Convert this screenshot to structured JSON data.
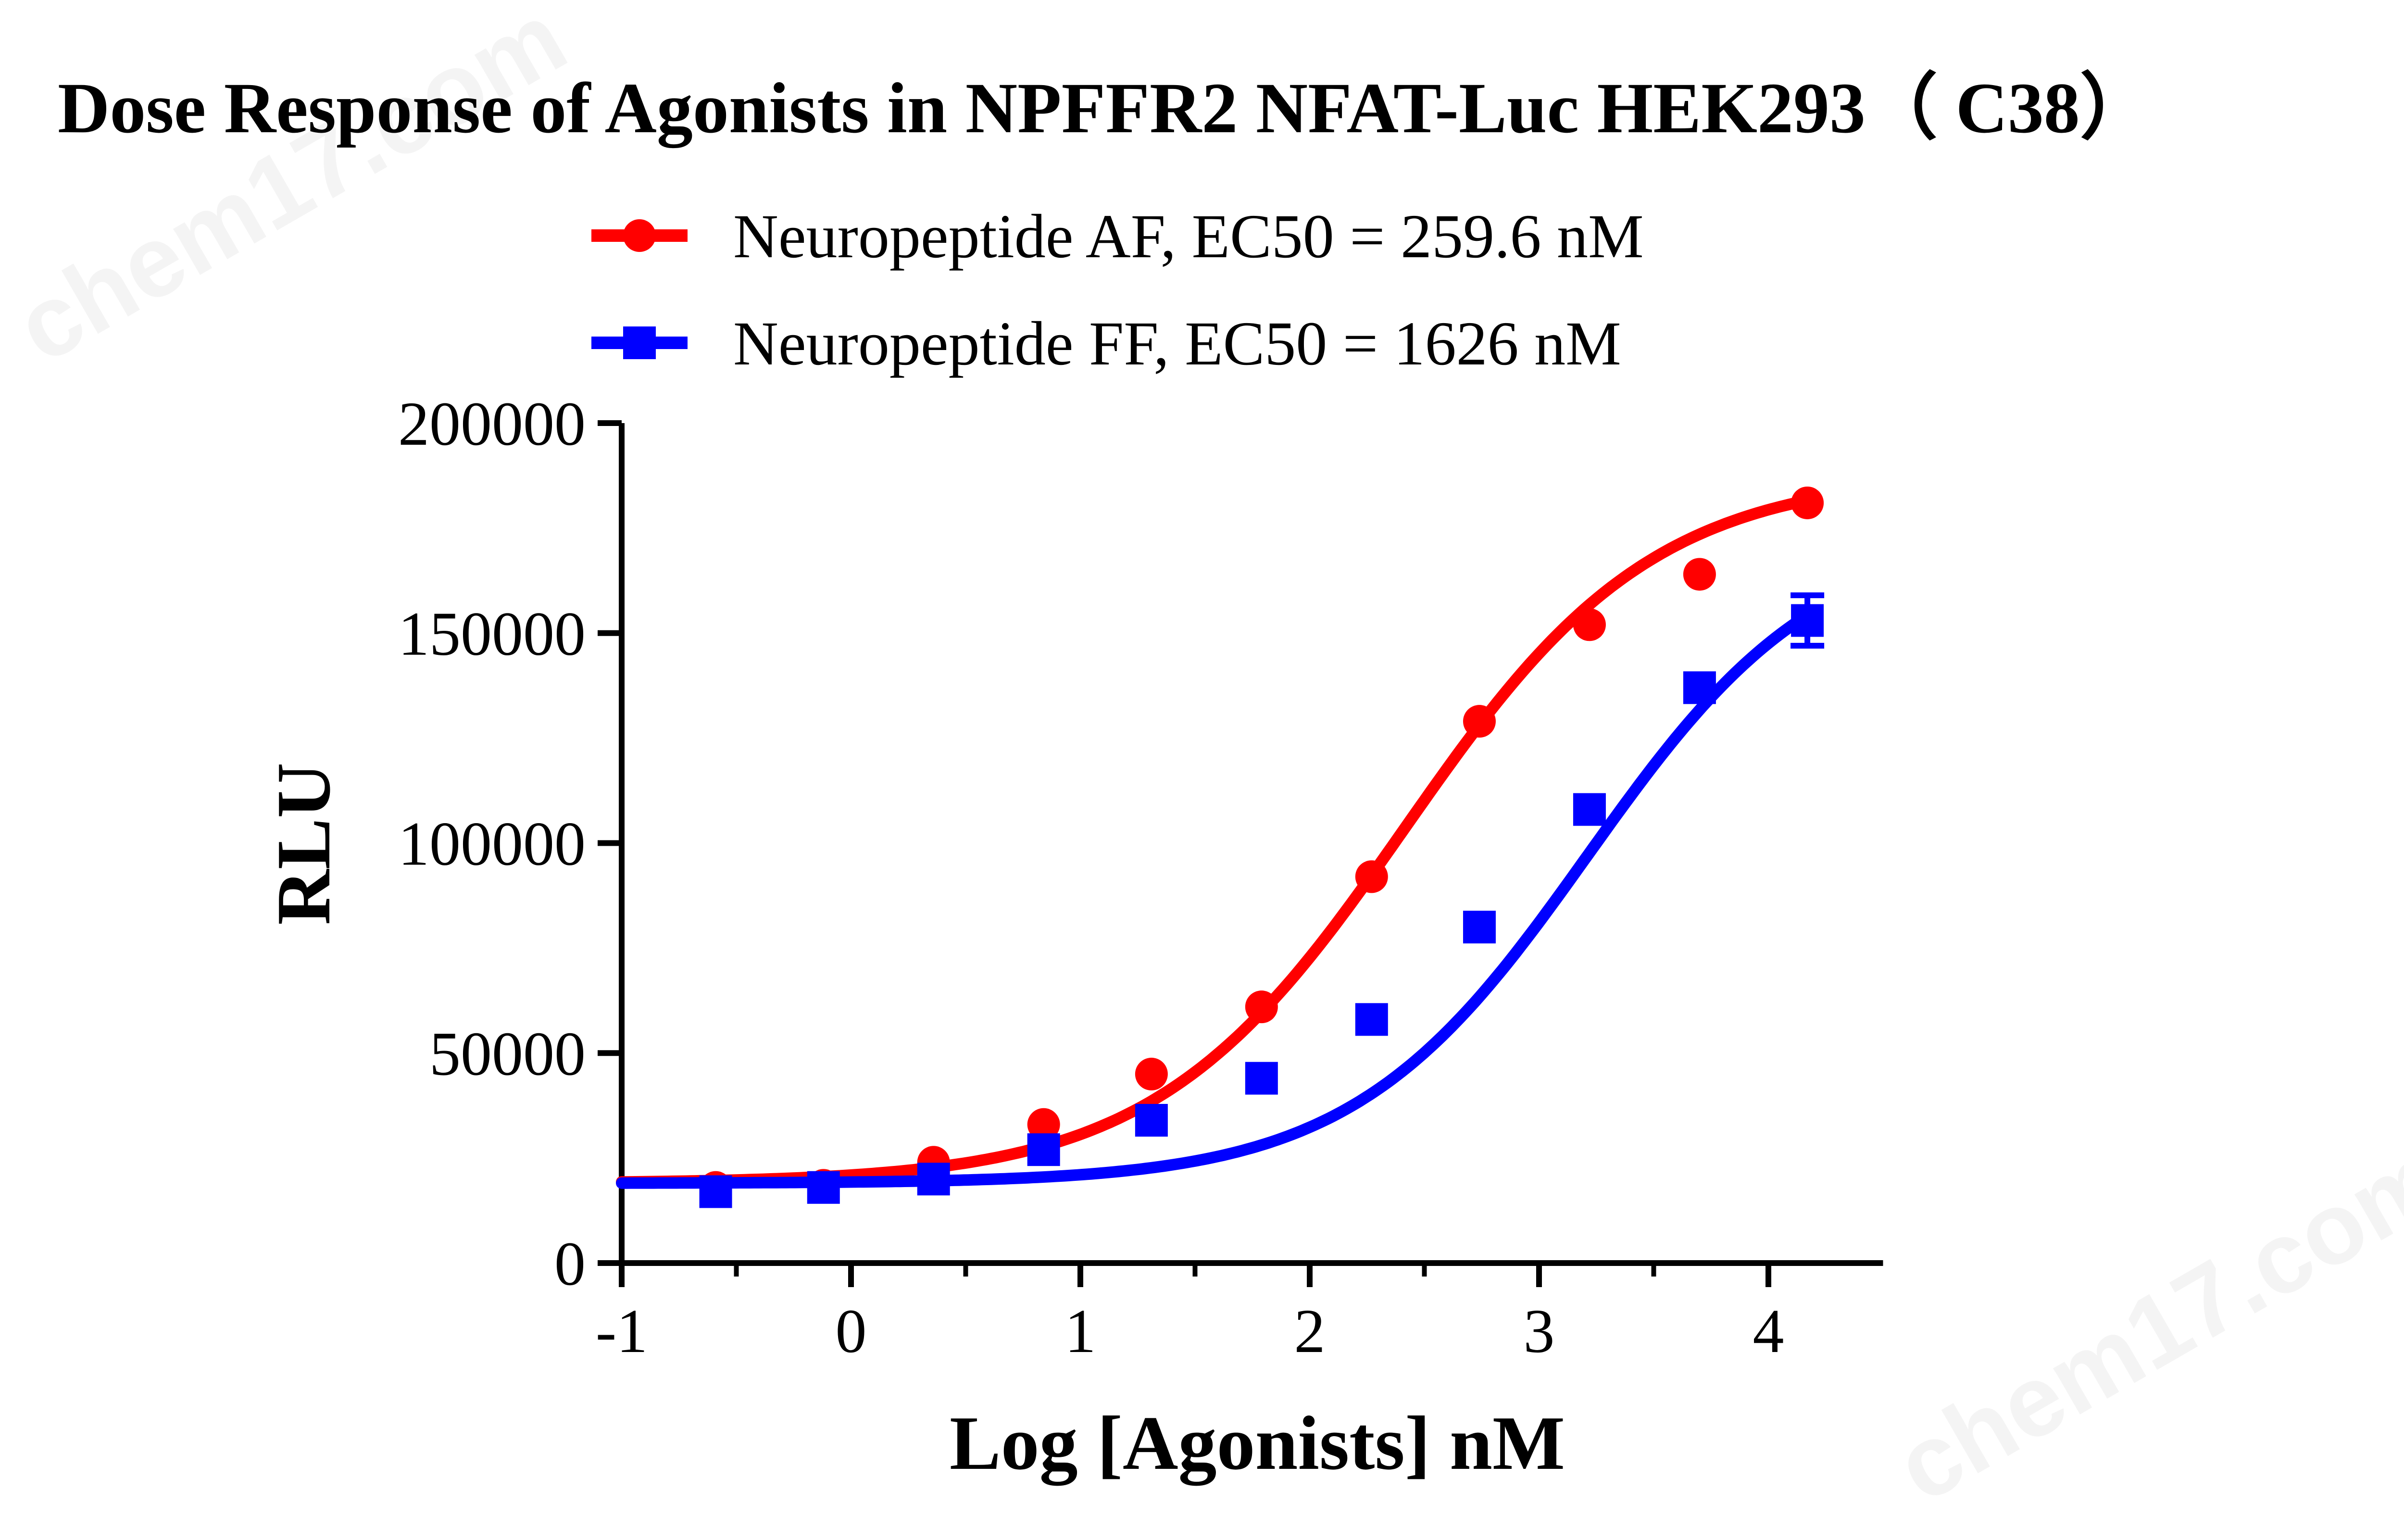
{
  "watermarks": [
    "chem17.com",
    "chem17.com"
  ],
  "chart_data": {
    "type": "scatter",
    "title": "Dose Response of Agonists in NPFFR2 NFAT-Luc HEK293（ C38）",
    "xlabel": "Log [Agonists] nM",
    "ylabel": "RLU",
    "xlim": [
      -1,
      4.5
    ],
    "ylim": [
      0,
      200000
    ],
    "xticks": [
      -1,
      0,
      1,
      2,
      3,
      4
    ],
    "yticks": [
      0,
      50000,
      100000,
      150000,
      200000
    ],
    "grid": false,
    "legend_position": "top",
    "series": [
      {
        "name": "Neuropeptide AF, EC50 = 259.6 nM",
        "color": "#ff0000",
        "marker": "circle",
        "x": [
          -0.59,
          -0.12,
          0.36,
          0.84,
          1.31,
          1.79,
          2.27,
          2.74,
          3.22,
          3.7,
          4.17
        ],
        "y": [
          18000,
          18500,
          24000,
          33000,
          45000,
          61000,
          92000,
          129000,
          152000,
          164000,
          181000
        ],
        "fit": {
          "bottom": 19000,
          "top": 188000,
          "hill": 0.8,
          "logEC50": 2.414
        }
      },
      {
        "name": "Neuropeptide FF, EC50 = 1626 nM",
        "color": "#0000ff",
        "marker": "square",
        "x": [
          -0.59,
          -0.12,
          0.36,
          0.84,
          1.31,
          1.79,
          2.27,
          2.74,
          3.22,
          3.7,
          4.17
        ],
        "y": [
          17000,
          18000,
          20000,
          27000,
          34000,
          44000,
          58000,
          80000,
          108000,
          137000,
          153000
        ],
        "yerr": [
          0,
          0,
          0,
          0,
          0,
          0,
          0,
          0,
          0,
          0,
          6000
        ],
        "fit": {
          "bottom": 19000,
          "top": 175000,
          "hill": 0.85,
          "logEC50": 3.211
        }
      }
    ]
  }
}
